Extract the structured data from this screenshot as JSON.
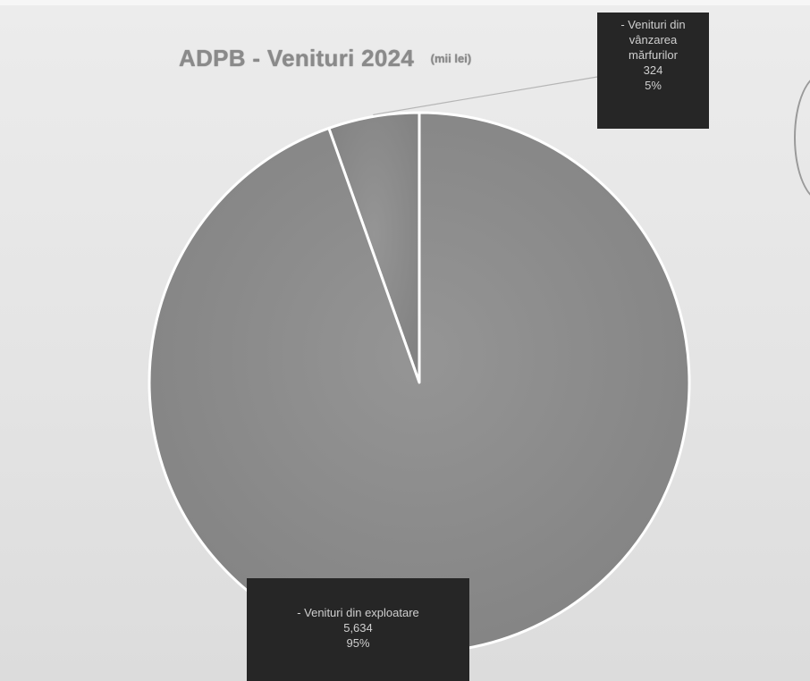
{
  "chart_data": {
    "type": "pie",
    "title": "ADPB - Venituri 2024",
    "subtitle": "(mii lei)",
    "slices": [
      {
        "label": "- Venituri din vânzarea mărfurilor",
        "label_lines": [
          "- Venituri din",
          "vânzarea",
          "mărfurilor"
        ],
        "value": 324,
        "value_label": "324",
        "percent": 5,
        "percent_label": "5%"
      },
      {
        "label": "- Venituri din exploatare",
        "label_lines": [
          "- Venituri din exploatare"
        ],
        "value": 5634,
        "value_label": "5,634",
        "percent": 95,
        "percent_label": "95%"
      }
    ],
    "start_angle_deg": 0,
    "direction": "clockwise",
    "legend": "none",
    "slice_color": "#8c8c8c",
    "slice_border_color": "#ffffff",
    "label_box_color": "#262626",
    "label_text_color": "#cfcfcf",
    "title_color": "#8a8a8a"
  }
}
